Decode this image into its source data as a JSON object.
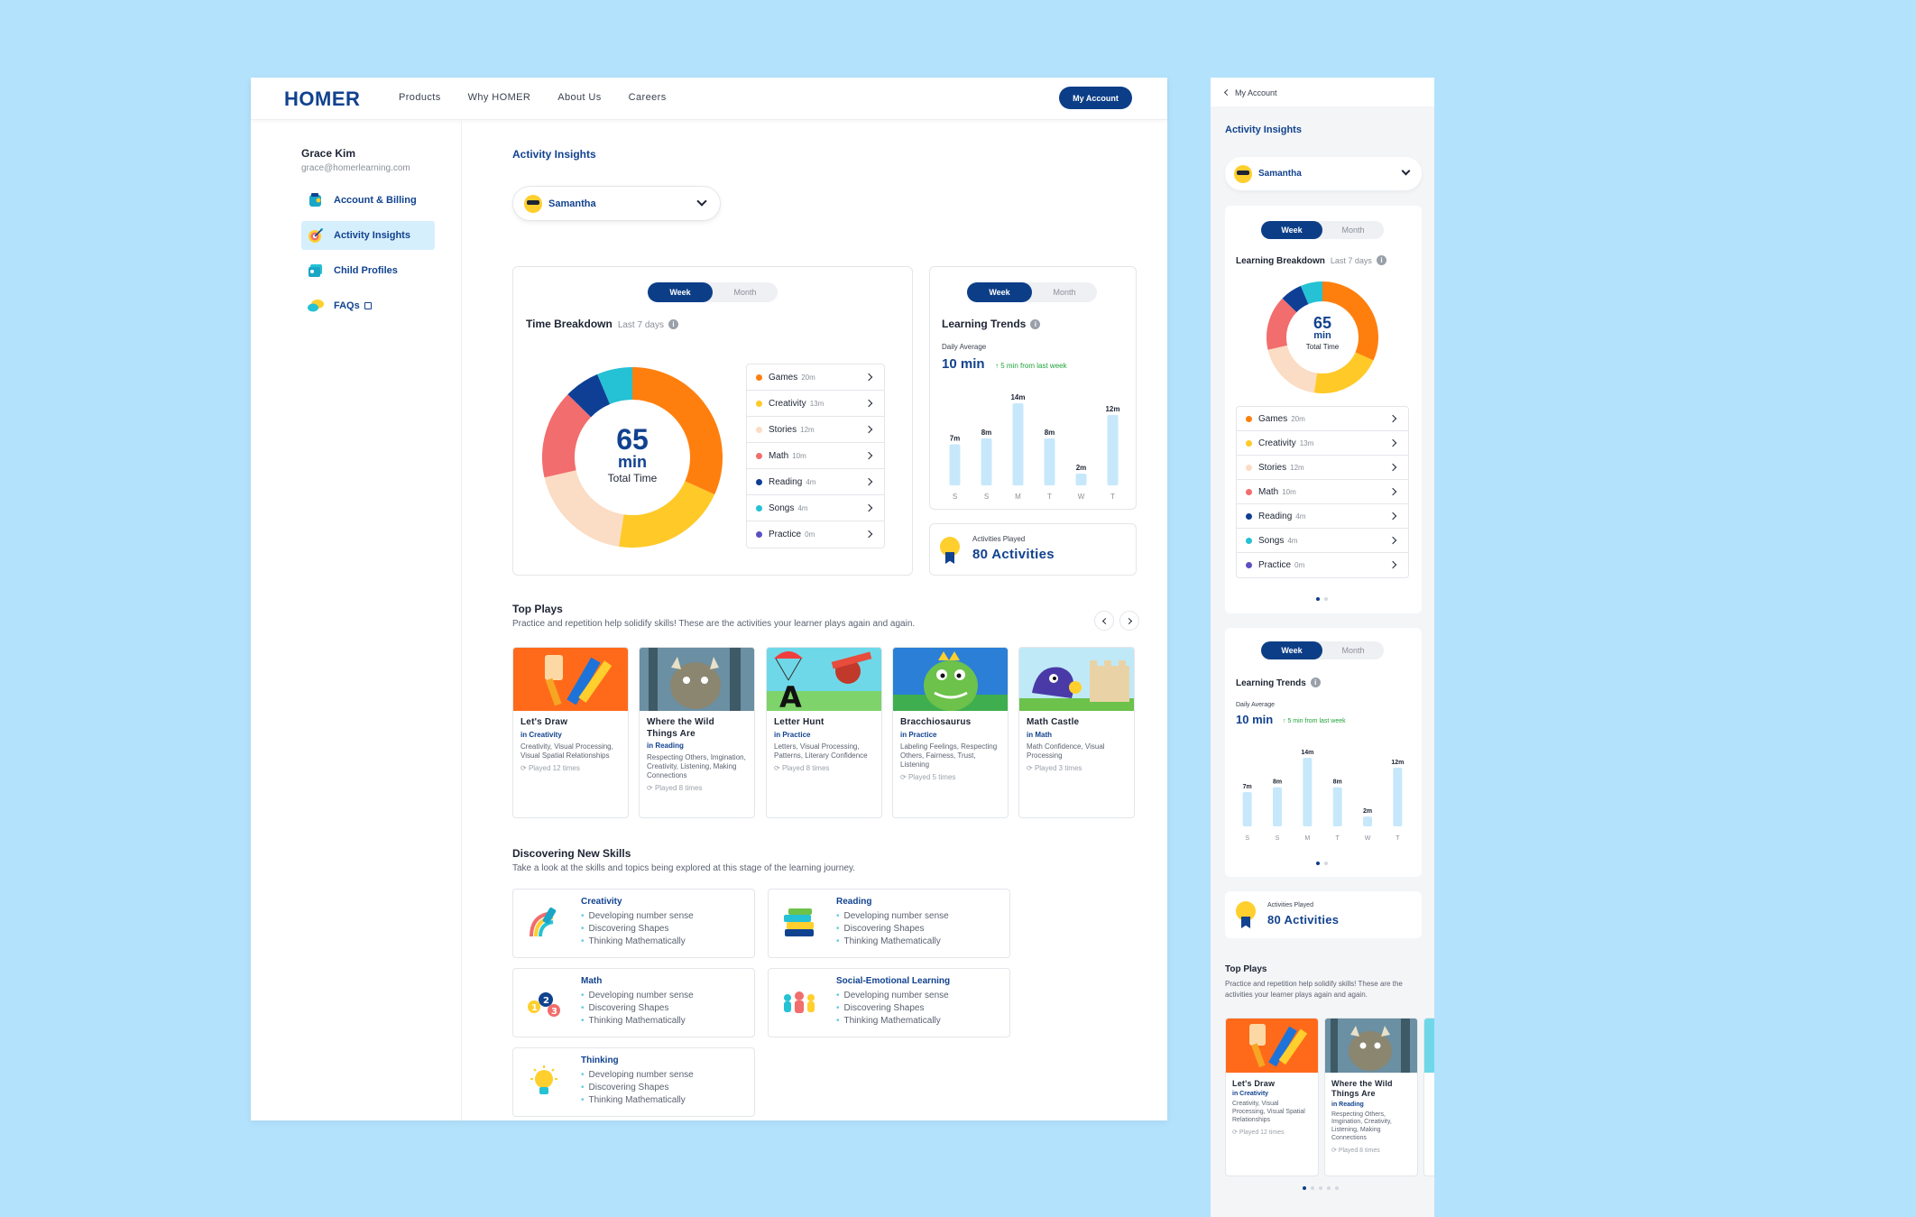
{
  "nav": {
    "logo": "HOMER",
    "links": [
      "Products",
      "Why HOMER",
      "About Us",
      "Careers"
    ],
    "account_button": "My Account"
  },
  "user": {
    "name": "Grace Kim",
    "email": "grace@homerlearning.com"
  },
  "sidebar": {
    "items": [
      {
        "label": "Account & Billing",
        "icon": "wallet-icon",
        "active": false
      },
      {
        "label": "Activity Insights",
        "icon": "target-icon",
        "active": true
      },
      {
        "label": "Child Profiles",
        "icon": "profile-cards-icon",
        "active": false
      },
      {
        "label": "FAQs",
        "icon": "chat-bubbles-icon",
        "active": false
      }
    ]
  },
  "page": {
    "title": "Activity Insights",
    "child": "Samantha"
  },
  "toggle": {
    "week": "Week",
    "month": "Month"
  },
  "time_breakdown": {
    "title": "Time Breakdown",
    "subtitle": "Last 7 days",
    "total": "65",
    "unit": "min",
    "total_label": "Total Time",
    "items": [
      {
        "label": "Games",
        "minutes": "20m",
        "value": 20,
        "color": "#ff7f0e"
      },
      {
        "label": "Creativity",
        "minutes": "13m",
        "value": 13,
        "color": "#ffc928"
      },
      {
        "label": "Stories",
        "minutes": "12m",
        "value": 12,
        "color": "#fbdcc4"
      },
      {
        "label": "Math",
        "minutes": "10m",
        "value": 10,
        "color": "#f26d6d"
      },
      {
        "label": "Reading",
        "minutes": "4m",
        "value": 4,
        "color": "#0e3f95"
      },
      {
        "label": "Songs",
        "minutes": "4m",
        "value": 4,
        "color": "#25c1d4"
      },
      {
        "label": "Practice",
        "minutes": "0m",
        "value": 0,
        "color": "#5b4fc4"
      }
    ]
  },
  "learning_trends": {
    "title": "Learning Trends",
    "avg_label": "Daily Average",
    "avg_value": "10 min",
    "delta": "5 min from last week"
  },
  "chart_data": {
    "type": "bar",
    "categories": [
      "S",
      "S",
      "M",
      "T",
      "W",
      "T"
    ],
    "values": [
      7,
      8,
      14,
      8,
      2,
      12
    ],
    "data_labels": [
      "7m",
      "8m",
      "14m",
      "8m",
      "2m",
      "12m"
    ],
    "bar_color": "#c7e8fb"
  },
  "learning_breakdown": {
    "title": "Learning Breakdown",
    "subtitle": "Last 7 days"
  },
  "activities": {
    "label": "Activities Played",
    "value": "80 Activities"
  },
  "top_plays": {
    "title": "Top Plays",
    "description": "Practice and repetition help solidify skills! These are the activities your learner plays again and again.",
    "mobile_description": "Practice and repetition help solidify skills! These are the activities your learner plays again and again.",
    "items": [
      {
        "name": "Let's Draw",
        "category": "in Creativity",
        "skills": "Creativity, Visual Processing, Visual Spatial Relationships",
        "mobile_skills": "Creativity, Visual Processing, Visual Spatial Relationships",
        "played": "Played 12 times"
      },
      {
        "name": "Where the Wild Things Are",
        "category": "in Reading",
        "skills": "Respecting Others, Imgination, Creativity, Listening, Making Connections",
        "mobile_skills": "Respecting Others, Imgination, Creativity, Listening, Making Connections",
        "played": "Played 8 times"
      },
      {
        "name": "Letter Hunt",
        "category": "in Practice",
        "skills": "Letters, Visual Processing, Patterns, Literary Confidence",
        "played": "Played 8 times"
      },
      {
        "name": "Bracchiosaurus",
        "category": "in Practice",
        "skills": "Labeling Feelings, Respecting Others, Fairness, Trust, Listening",
        "played": "Played 5 times"
      },
      {
        "name": "Math Castle",
        "category": "in Math",
        "skills": "Math Confidence, Visual Processing",
        "played": "Played 3 times"
      }
    ]
  },
  "new_skills": {
    "title": "Discovering New Skills",
    "description": "Take a look at the skills and topics being explored at this stage of the learning journey.",
    "items": [
      {
        "name": "Creativity",
        "icon": "brush-rainbow-icon",
        "bullets": [
          "Developing number sense",
          "Discovering Shapes",
          "Thinking Mathematically"
        ]
      },
      {
        "name": "Reading",
        "icon": "book-stack-icon",
        "bullets": [
          "Developing number sense",
          "Discovering Shapes",
          "Thinking Mathematically"
        ]
      },
      {
        "name": "Math",
        "icon": "numbers-icon",
        "bullets": [
          "Developing number sense",
          "Discovering Shapes",
          "Thinking Mathematically"
        ]
      },
      {
        "name": "Social-Emotional Learning",
        "icon": "people-icon",
        "bullets": [
          "Developing number sense",
          "Discovering Shapes",
          "Thinking Mathematically"
        ]
      },
      {
        "name": "Thinking",
        "icon": "lightbulb-icon",
        "bullets": [
          "Developing number sense",
          "Discovering Shapes",
          "Thinking Mathematically"
        ]
      }
    ]
  },
  "mobile": {
    "back_label": "My Account"
  }
}
